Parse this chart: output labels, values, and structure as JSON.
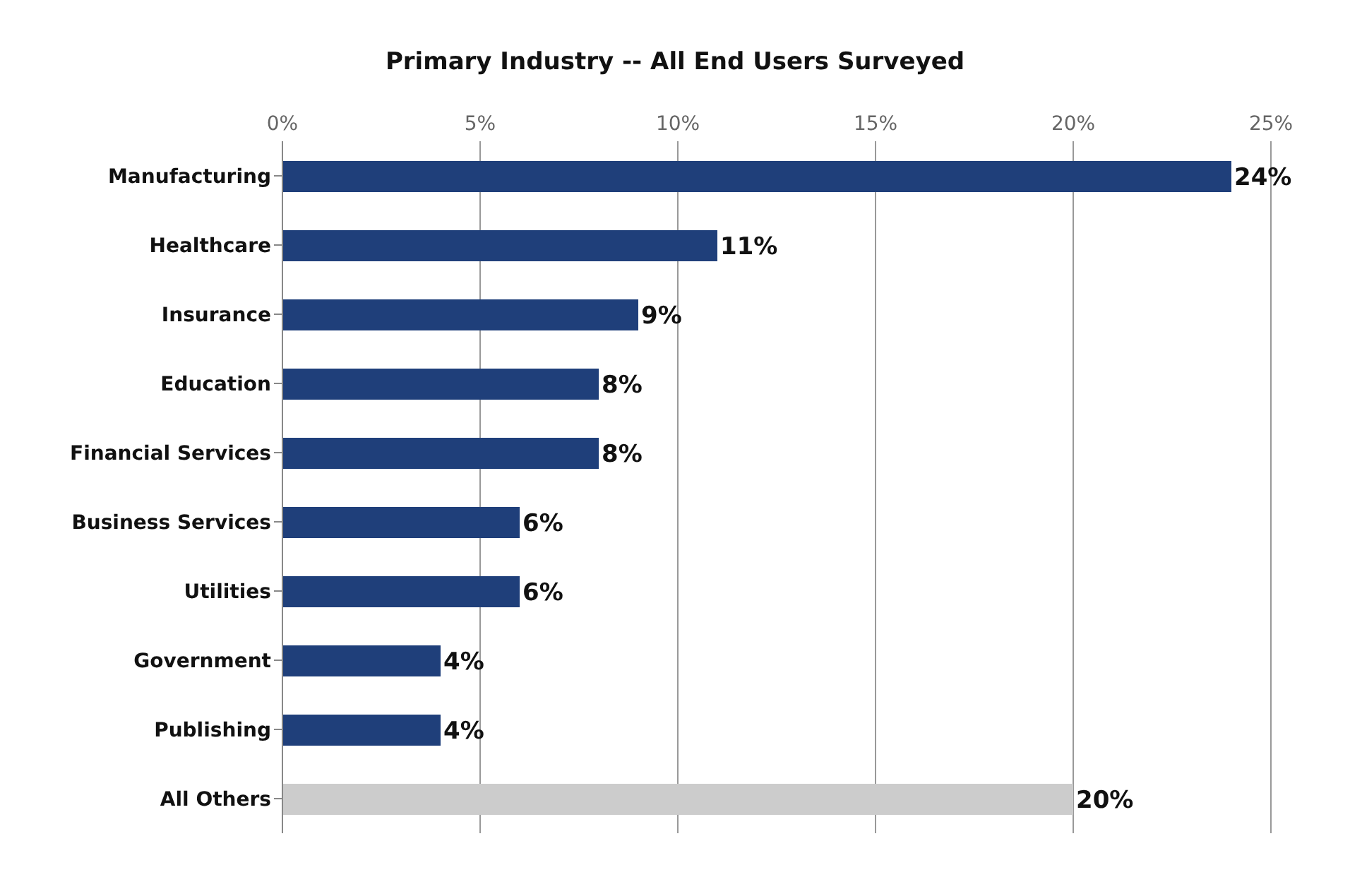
{
  "chart_data": {
    "type": "bar",
    "orientation": "horizontal",
    "title": "Primary Industry -- All End Users Surveyed",
    "categories": [
      "Manufacturing",
      "Healthcare",
      "Insurance",
      "Education",
      "Financial Services",
      "Business Services",
      "Utilities",
      "Government",
      "Publishing",
      "All Others"
    ],
    "values": [
      24,
      11,
      9,
      8,
      8,
      6,
      6,
      4,
      4,
      20
    ],
    "value_labels": [
      "24%",
      "11%",
      "9%",
      "8%",
      "8%",
      "6%",
      "6%",
      "4%",
      "4%",
      "20%"
    ],
    "colors": [
      "#1f3f7a",
      "#1f3f7a",
      "#1f3f7a",
      "#1f3f7a",
      "#1f3f7a",
      "#1f3f7a",
      "#1f3f7a",
      "#1f3f7a",
      "#1f3f7a",
      "#cccccc"
    ],
    "xlim": [
      0,
      25
    ],
    "xticks": [
      {
        "value": 0,
        "label": "0%"
      },
      {
        "value": 5,
        "label": "5%"
      },
      {
        "value": 10,
        "label": "10%"
      },
      {
        "value": 15,
        "label": "15%"
      },
      {
        "value": 20,
        "label": "20%"
      },
      {
        "value": 25,
        "label": "25%"
      }
    ],
    "grid": "x",
    "legend": false
  }
}
